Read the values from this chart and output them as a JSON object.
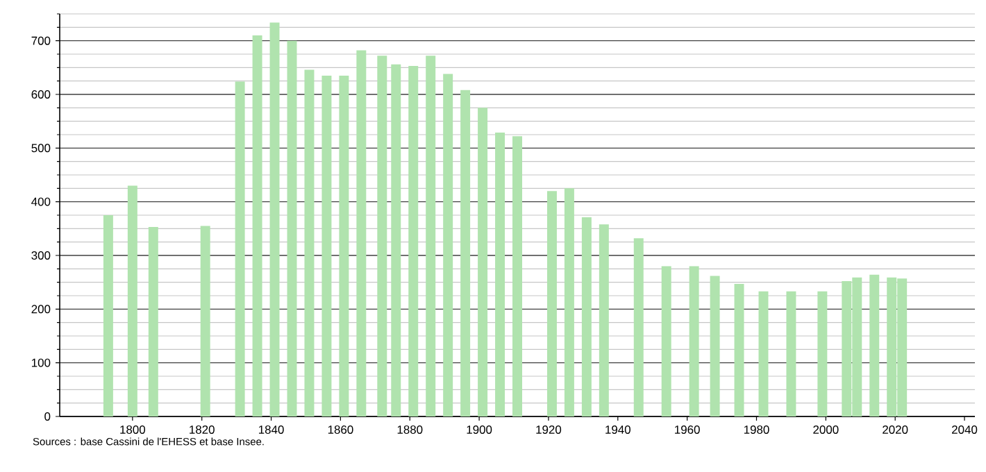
{
  "chart_data": {
    "type": "bar",
    "x": [
      1793,
      1800,
      1806,
      1821,
      1831,
      1836,
      1841,
      1846,
      1851,
      1856,
      1861,
      1866,
      1872,
      1876,
      1881,
      1886,
      1891,
      1896,
      1901,
      1906,
      1911,
      1921,
      1926,
      1931,
      1936,
      1946,
      1954,
      1962,
      1968,
      1975,
      1982,
      1990,
      1999,
      2006,
      2009,
      2014,
      2019,
      2022
    ],
    "values": [
      375,
      430,
      353,
      355,
      624,
      710,
      734,
      700,
      646,
      635,
      635,
      682,
      672,
      656,
      653,
      672,
      638,
      608,
      575,
      529,
      522,
      420,
      425,
      371,
      358,
      332,
      280,
      280,
      262,
      247,
      233,
      233,
      233,
      252,
      259,
      264,
      259,
      257
    ],
    "color": "#b0e3ae",
    "xlim": [
      1779,
      2043
    ],
    "xticks": [
      1800,
      1820,
      1840,
      1860,
      1880,
      1900,
      1920,
      1940,
      1960,
      1980,
      2000,
      2020,
      2040
    ],
    "ylim": [
      0,
      750
    ],
    "yticks": [
      0,
      {
        "value": 25,
        "label": null
      },
      {
        "value": 50,
        "label": null
      },
      {
        "value": 75,
        "label": null
      },
      100,
      {
        "value": 125,
        "label": null
      },
      {
        "value": 150,
        "label": null
      },
      {
        "value": 175,
        "label": null
      },
      200,
      {
        "value": 225,
        "label": null
      },
      {
        "value": 250,
        "label": null
      },
      {
        "value": 275,
        "label": null
      },
      300,
      {
        "value": 325,
        "label": null
      },
      {
        "value": 350,
        "label": null
      },
      {
        "value": 375,
        "label": null
      },
      400,
      {
        "value": 425,
        "label": null
      },
      {
        "value": 450,
        "label": null
      },
      {
        "value": 475,
        "label": null
      },
      500,
      {
        "value": 525,
        "label": null
      },
      {
        "value": 550,
        "label": null
      },
      {
        "value": 575,
        "label": null
      },
      600,
      {
        "value": 625,
        "label": null
      },
      {
        "value": 650,
        "label": null
      },
      {
        "value": 675,
        "label": null
      },
      700,
      {
        "value": 725,
        "label": null
      },
      {
        "value": 750,
        "label": null
      }
    ],
    "grid": "y",
    "annotations": [
      "Sources : base Cassini de l'EHESS et base Insee."
    ]
  }
}
